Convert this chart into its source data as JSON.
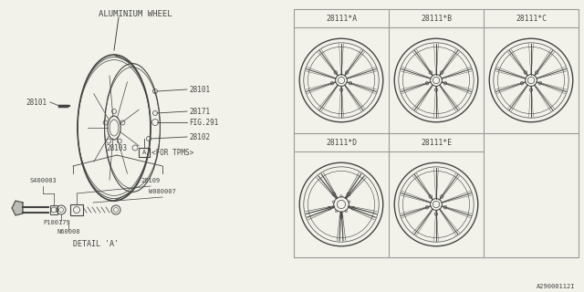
{
  "bg_color": "#f2f2ea",
  "line_color": "#444444",
  "grid_color": "#999999",
  "title_text": "ALUMINIUM WHEEL",
  "detail_title": "DETAIL 'A'",
  "part_numbers": {
    "28101_right": "28101",
    "28101_left": "28101",
    "28171": "28171",
    "fig291": "FIG.291",
    "28102": "28102",
    "for_tpms": "<FOR TPMS>",
    "28103": "28103",
    "S400003": "S400003",
    "28109": "28109",
    "W080007": "W080007",
    "P100179": "P100179",
    "N60008": "N60008"
  },
  "wheel_variants": [
    "28111*A",
    "28111*B",
    "28111*C",
    "28111*D",
    "28111*E"
  ],
  "footer_id": "A29000112I"
}
